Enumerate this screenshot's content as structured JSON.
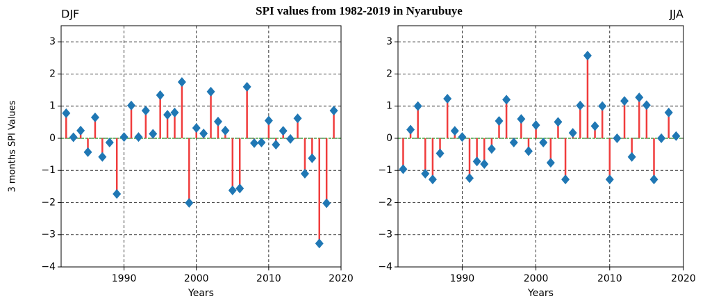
{
  "title": "SPI values from 1982-2019 in Nyarubuye",
  "chart_data": [
    {
      "type": "stem",
      "title": "DJF",
      "title_loc": "left",
      "ylabel": "3 months SPI Values",
      "xlabel": "Years",
      "x": [
        1982,
        1983,
        1984,
        1985,
        1986,
        1987,
        1988,
        1989,
        1990,
        1991,
        1992,
        1993,
        1994,
        1995,
        1996,
        1997,
        1998,
        1999,
        2000,
        2001,
        2002,
        2003,
        2004,
        2005,
        2006,
        2007,
        2008,
        2009,
        2010,
        2011,
        2012,
        2013,
        2014,
        2015,
        2016,
        2017,
        2018,
        2019
      ],
      "values": [
        0.78,
        0.03,
        0.24,
        -0.43,
        0.65,
        -0.58,
        -0.13,
        -1.73,
        0.04,
        1.02,
        0.04,
        0.86,
        0.14,
        1.34,
        0.73,
        0.8,
        1.75,
        -2.01,
        0.32,
        0.15,
        1.45,
        0.52,
        0.24,
        -1.62,
        -1.56,
        1.6,
        -0.15,
        -0.13,
        0.55,
        -0.2,
        0.23,
        -0.02,
        0.62,
        -1.1,
        -0.62,
        -3.27,
        -2.02,
        0.86
      ],
      "color": "#1f77b4",
      "stem_color": "#f03c3c",
      "baseline_color": "#2ca02c",
      "xlim": [
        1981.3,
        2020
      ],
      "xticks": [
        1990,
        2000,
        2010,
        2020
      ],
      "ylim": [
        -4,
        3.5
      ],
      "yticks": [
        {
          "value": -4,
          "label": "−4"
        },
        {
          "value": -3,
          "label": "−3"
        },
        {
          "value": -2,
          "label": "−2"
        },
        {
          "value": -1,
          "label": "−1"
        },
        0,
        1,
        2,
        3
      ],
      "grid": true
    },
    {
      "type": "stem",
      "title": "JJA",
      "title_loc": "right",
      "xlabel": "Years",
      "x": [
        1982,
        1983,
        1984,
        1985,
        1986,
        1987,
        1988,
        1989,
        1990,
        1991,
        1992,
        1993,
        1994,
        1995,
        1996,
        1997,
        1998,
        1999,
        2000,
        2001,
        2002,
        2003,
        2004,
        2005,
        2006,
        2007,
        2008,
        2009,
        2010,
        2011,
        2012,
        2013,
        2014,
        2015,
        2016,
        2017,
        2018,
        2019
      ],
      "values": [
        -0.96,
        0.27,
        1.0,
        -1.1,
        -1.28,
        -0.47,
        1.23,
        0.23,
        0.04,
        -1.24,
        -0.72,
        -0.8,
        -0.33,
        0.54,
        1.2,
        -0.13,
        0.6,
        -0.4,
        0.41,
        -0.13,
        -0.76,
        0.51,
        -1.28,
        0.17,
        1.02,
        2.57,
        0.38,
        1.0,
        -1.28,
        0.0,
        1.16,
        -0.58,
        1.27,
        1.03,
        -1.28,
        0.0,
        0.8,
        0.07
      ],
      "color": "#1f77b4",
      "stem_color": "#f03c3c",
      "baseline_color": "#2ca02c",
      "xlim": [
        1981.3,
        2020
      ],
      "xticks": [
        1990,
        2000,
        2010,
        2020
      ],
      "ylim": [
        -4,
        3.5
      ],
      "yticks": [
        {
          "value": -4,
          "label": "−4"
        },
        {
          "value": -3,
          "label": "−3"
        },
        {
          "value": -2,
          "label": "−2"
        },
        {
          "value": -1,
          "label": "−1"
        },
        0,
        1,
        2,
        3
      ],
      "grid": true
    }
  ]
}
